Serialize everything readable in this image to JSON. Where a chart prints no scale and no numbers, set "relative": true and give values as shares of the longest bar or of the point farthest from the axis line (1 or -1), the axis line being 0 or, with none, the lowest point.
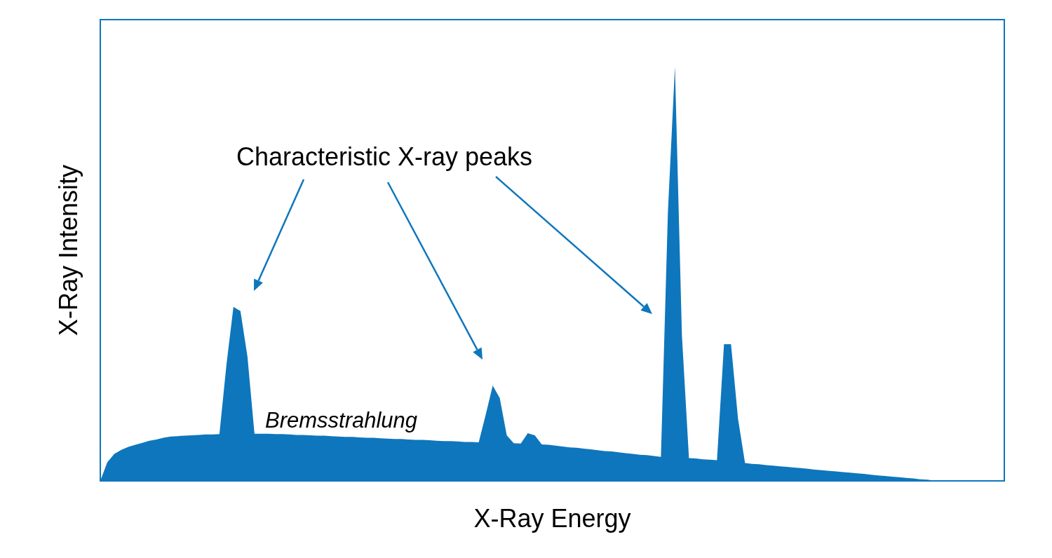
{
  "chart_data": {
    "type": "area",
    "relative": true,
    "xlabel": "X-Ray Energy",
    "ylabel": "X-Ray Intensity",
    "annotations": [
      "Characteristic X-ray peaks",
      "Bremsstrahlung"
    ],
    "categories": [
      null,
      null,
      null,
      null,
      null,
      null,
      null,
      null,
      null,
      null,
      null,
      null,
      null,
      null,
      null,
      null,
      null,
      null,
      null,
      null,
      null,
      null,
      null,
      null,
      null,
      null,
      null,
      null,
      null,
      null,
      null,
      null,
      null,
      null,
      null,
      null,
      null,
      null,
      null,
      null,
      null,
      null,
      null,
      null,
      null,
      null,
      null,
      null,
      null,
      null,
      null,
      null,
      null,
      null,
      null,
      null,
      null,
      null,
      null,
      null,
      null,
      null,
      null,
      null,
      null,
      null,
      null,
      null,
      null,
      null,
      null,
      null,
      null,
      null,
      null,
      null,
      null,
      null,
      null,
      null,
      null,
      null,
      null,
      null,
      null,
      null,
      null,
      null,
      null,
      null,
      null,
      null,
      null,
      null,
      null,
      null,
      null,
      null,
      null,
      null,
      null,
      null,
      null,
      null,
      null,
      null,
      null,
      null,
      null,
      null,
      null,
      null,
      null,
      null,
      null,
      null,
      null,
      null,
      null,
      null,
      null,
      null,
      null,
      null,
      null,
      null,
      null,
      null,
      null,
      null
    ],
    "series": [
      {
        "color": "#0e76bc",
        "values": [
          0,
          0.045,
          0.065,
          0.075,
          0.082,
          0.087,
          0.092,
          0.097,
          0.1,
          0.104,
          0.107,
          0.108,
          0.109,
          0.11,
          0.111,
          0.112,
          0.112,
          0.113,
          0.28,
          0.42,
          0.41,
          0.3,
          0.114,
          0.114,
          0.114,
          0.113,
          0.113,
          0.112,
          0.111,
          0.111,
          0.11,
          0.109,
          0.109,
          0.108,
          0.107,
          0.106,
          0.106,
          0.105,
          0.104,
          0.104,
          0.103,
          0.102,
          0.101,
          0.101,
          0.1,
          0.099,
          0.099,
          0.098,
          0.097,
          0.096,
          0.096,
          0.095,
          0.094,
          0.094,
          0.093,
          0.16,
          0.23,
          0.2,
          0.11,
          0.091,
          0.09,
          0.115,
          0.11,
          0.088,
          0.087,
          0.085,
          0.083,
          0.081,
          0.08,
          0.078,
          0.076,
          0.074,
          0.072,
          0.071,
          0.069,
          0.067,
          0.065,
          0.063,
          0.062,
          0.06,
          0.058,
          0.65,
          1,
          0.35,
          0.055,
          0.054,
          0.052,
          0.051,
          0.05,
          0.33,
          0.33,
          0.15,
          0.043,
          0.041,
          0.04,
          0.038,
          0.037,
          0.035,
          0.034,
          0.032,
          0.031,
          0.029,
          0.027,
          0.026,
          0.024,
          0.023,
          0.021,
          0.02,
          0.018,
          0.017,
          0.015,
          0.013,
          0.012,
          0.01,
          0.009,
          0.007,
          0.006,
          0.004,
          0.003,
          0.001,
          0,
          0,
          0,
          0,
          0,
          0,
          0,
          0,
          0,
          0
        ]
      }
    ]
  }
}
